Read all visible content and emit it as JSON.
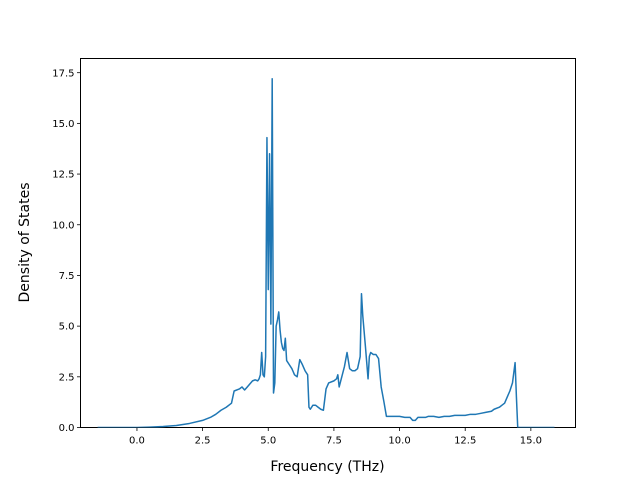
{
  "chart_data": {
    "type": "line",
    "title": "",
    "xlabel": "Frequency (THz)",
    "ylabel": "Density of States",
    "xlim": [
      -2.15,
      16.7
    ],
    "ylim": [
      0,
      18.2
    ],
    "xticks": [
      0.0,
      2.5,
      5.0,
      7.5,
      10.0,
      12.5,
      15.0
    ],
    "xtick_labels": [
      "0.0",
      "2.5",
      "5.0",
      "7.5",
      "10.0",
      "12.5",
      "15.0"
    ],
    "yticks": [
      0.0,
      2.5,
      5.0,
      7.5,
      10.0,
      12.5,
      15.0,
      17.5
    ],
    "ytick_labels": [
      "0.0",
      "2.5",
      "5.0",
      "7.5",
      "10.0",
      "12.5",
      "15.0",
      "17.5"
    ],
    "grid": false,
    "line_color": "#1f77b4",
    "series": [
      {
        "x": [
          -1.5,
          -1.0,
          -0.5,
          0.0,
          0.5,
          1.0,
          1.5,
          2.0,
          2.5,
          2.8,
          3.0,
          3.2,
          3.4,
          3.6,
          3.7,
          3.9,
          4.0,
          4.1,
          4.2,
          4.4,
          4.5,
          4.6,
          4.65,
          4.7,
          4.75,
          4.8,
          4.85,
          4.9,
          4.95,
          5.0,
          5.05,
          5.1,
          5.15,
          5.2,
          5.25,
          5.3,
          5.35,
          5.4,
          5.45,
          5.5,
          5.55,
          5.6,
          5.65,
          5.7,
          5.8,
          5.9,
          5.95,
          6.0,
          6.1,
          6.2,
          6.3,
          6.4,
          6.5,
          6.55,
          6.6,
          6.65,
          6.7,
          6.8,
          6.9,
          7.0,
          7.1,
          7.2,
          7.3,
          7.5,
          7.6,
          7.65,
          7.7,
          7.8,
          7.9,
          8.0,
          8.1,
          8.2,
          8.3,
          8.4,
          8.5,
          8.55,
          8.6,
          8.7,
          8.8,
          8.85,
          8.9,
          9.0,
          9.1,
          9.2,
          9.3,
          9.4,
          9.5,
          9.6,
          9.7,
          9.8,
          9.9,
          10.0,
          10.2,
          10.4,
          10.5,
          10.6,
          10.7,
          10.8,
          10.9,
          11.0,
          11.1,
          11.3,
          11.5,
          11.7,
          11.9,
          12.1,
          12.3,
          12.5,
          12.7,
          12.9,
          13.1,
          13.3,
          13.5,
          13.6,
          13.8,
          13.9,
          14.0,
          14.1,
          14.2,
          14.3,
          14.4,
          14.45,
          14.5,
          14.55,
          14.7,
          14.9,
          15.5,
          15.9
        ],
        "y": [
          0.0,
          0.0,
          0.0,
          0.0,
          0.02,
          0.05,
          0.1,
          0.2,
          0.35,
          0.5,
          0.65,
          0.85,
          1.0,
          1.2,
          1.8,
          1.9,
          2.0,
          1.85,
          2.0,
          2.3,
          2.35,
          2.3,
          2.4,
          2.6,
          3.7,
          2.6,
          2.5,
          3.5,
          14.3,
          6.8,
          13.5,
          5.1,
          17.2,
          1.7,
          2.2,
          5.0,
          5.3,
          5.7,
          4.8,
          4.2,
          3.9,
          3.8,
          4.4,
          3.3,
          3.1,
          2.9,
          2.75,
          2.6,
          2.5,
          3.35,
          3.1,
          2.8,
          2.6,
          1.0,
          0.9,
          1.0,
          1.1,
          1.1,
          1.0,
          0.9,
          0.85,
          1.9,
          2.2,
          2.3,
          2.4,
          2.6,
          2.0,
          2.5,
          3.0,
          3.7,
          2.9,
          2.8,
          2.8,
          2.9,
          3.5,
          6.6,
          5.5,
          4.0,
          2.4,
          3.5,
          3.7,
          3.6,
          3.6,
          3.4,
          2.0,
          1.3,
          0.55,
          0.55,
          0.55,
          0.55,
          0.55,
          0.55,
          0.5,
          0.5,
          0.35,
          0.35,
          0.5,
          0.5,
          0.5,
          0.5,
          0.55,
          0.55,
          0.5,
          0.55,
          0.55,
          0.6,
          0.6,
          0.6,
          0.65,
          0.65,
          0.7,
          0.75,
          0.8,
          0.9,
          1.0,
          1.1,
          1.2,
          1.5,
          1.8,
          2.2,
          3.2,
          1.5,
          0.0,
          0.0,
          0.0,
          0.0,
          0.0,
          0.0
        ]
      }
    ]
  }
}
